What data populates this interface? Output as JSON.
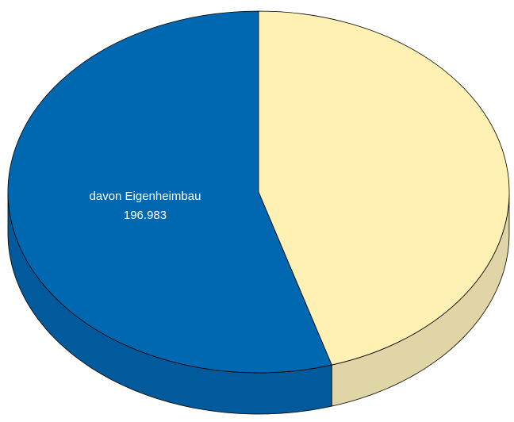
{
  "chart_data": {
    "type": "pie",
    "title": "",
    "style": "3d",
    "slices": [
      {
        "label": "davon Eigenheimbau",
        "value_text": "196.983",
        "value": 196983,
        "color": "#0068b1",
        "side_color": "#005a9c",
        "labelled": true
      },
      {
        "label": "",
        "value_text": "",
        "value": 163017,
        "color": "#fff0b3",
        "side_color": "#e0d5a6",
        "labelled": false
      }
    ]
  }
}
